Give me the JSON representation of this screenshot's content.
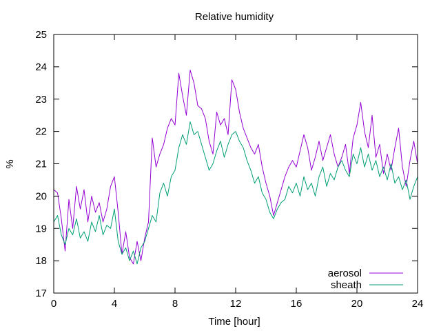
{
  "chart_data": {
    "type": "line",
    "title": "Relative humidity",
    "xlabel": "Time [hour]",
    "ylabel": "%",
    "xlim": [
      0,
      24
    ],
    "ylim": [
      17,
      25
    ],
    "x_ticks": [
      0,
      4,
      8,
      12,
      16,
      20,
      24
    ],
    "y_ticks": [
      17,
      18,
      19,
      20,
      21,
      22,
      23,
      24,
      25
    ],
    "grid": false,
    "legend_position": "bottom-right",
    "series": [
      {
        "name": "aerosol",
        "color": "#9400d3",
        "points": [
          [
            0.0,
            20.2
          ],
          [
            0.25,
            20.1
          ],
          [
            0.5,
            19.3
          ],
          [
            0.75,
            18.3
          ],
          [
            1.0,
            19.9
          ],
          [
            1.25,
            19.0
          ],
          [
            1.5,
            20.3
          ],
          [
            1.75,
            19.6
          ],
          [
            2.0,
            20.2
          ],
          [
            2.25,
            19.2
          ],
          [
            2.5,
            20.0
          ],
          [
            2.75,
            19.5
          ],
          [
            3.0,
            19.8
          ],
          [
            3.25,
            19.2
          ],
          [
            3.5,
            19.6
          ],
          [
            3.75,
            20.3
          ],
          [
            4.0,
            20.6
          ],
          [
            4.25,
            19.5
          ],
          [
            4.5,
            18.2
          ],
          [
            4.75,
            18.9
          ],
          [
            5.0,
            18.1
          ],
          [
            5.25,
            17.9
          ],
          [
            5.5,
            18.6
          ],
          [
            5.75,
            18.0
          ],
          [
            6.0,
            18.7
          ],
          [
            6.25,
            19.2
          ],
          [
            6.5,
            21.8
          ],
          [
            6.75,
            20.9
          ],
          [
            7.0,
            21.3
          ],
          [
            7.25,
            21.6
          ],
          [
            7.5,
            22.1
          ],
          [
            7.75,
            22.4
          ],
          [
            8.0,
            22.2
          ],
          [
            8.25,
            23.8
          ],
          [
            8.5,
            23.1
          ],
          [
            8.75,
            22.5
          ],
          [
            9.0,
            23.9
          ],
          [
            9.25,
            23.5
          ],
          [
            9.5,
            22.8
          ],
          [
            9.75,
            22.7
          ],
          [
            10.0,
            22.4
          ],
          [
            10.25,
            21.7
          ],
          [
            10.5,
            21.3
          ],
          [
            10.75,
            22.6
          ],
          [
            11.0,
            22.2
          ],
          [
            11.25,
            22.4
          ],
          [
            11.5,
            21.9
          ],
          [
            11.75,
            23.6
          ],
          [
            12.0,
            23.3
          ],
          [
            12.25,
            22.6
          ],
          [
            12.5,
            22.1
          ],
          [
            12.75,
            21.8
          ],
          [
            13.0,
            21.5
          ],
          [
            13.25,
            21.3
          ],
          [
            13.5,
            21.6
          ],
          [
            13.75,
            20.9
          ],
          [
            14.0,
            20.4
          ],
          [
            14.25,
            20.0
          ],
          [
            14.5,
            19.4
          ],
          [
            14.75,
            19.8
          ],
          [
            15.0,
            20.2
          ],
          [
            15.25,
            20.6
          ],
          [
            15.5,
            20.9
          ],
          [
            15.75,
            21.1
          ],
          [
            16.0,
            20.9
          ],
          [
            16.25,
            21.4
          ],
          [
            16.5,
            21.9
          ],
          [
            16.75,
            21.5
          ],
          [
            17.0,
            20.8
          ],
          [
            17.25,
            21.2
          ],
          [
            17.5,
            21.7
          ],
          [
            17.75,
            21.1
          ],
          [
            18.0,
            21.5
          ],
          [
            18.25,
            21.9
          ],
          [
            18.5,
            21.3
          ],
          [
            18.75,
            20.9
          ],
          [
            19.0,
            21.2
          ],
          [
            19.25,
            21.6
          ],
          [
            19.5,
            20.7
          ],
          [
            19.75,
            21.8
          ],
          [
            20.0,
            22.2
          ],
          [
            20.25,
            22.9
          ],
          [
            20.5,
            22.0
          ],
          [
            20.75,
            21.5
          ],
          [
            21.0,
            22.5
          ],
          [
            21.25,
            21.2
          ],
          [
            21.5,
            21.6
          ],
          [
            21.75,
            20.7
          ],
          [
            22.0,
            21.3
          ],
          [
            22.25,
            20.8
          ],
          [
            22.5,
            21.5
          ],
          [
            22.75,
            22.1
          ],
          [
            23.0,
            20.9
          ],
          [
            23.25,
            20.3
          ],
          [
            23.5,
            21.1
          ],
          [
            23.75,
            21.7
          ],
          [
            24.0,
            21.0
          ]
        ]
      },
      {
        "name": "sheath",
        "color": "#009e73",
        "points": [
          [
            0.0,
            19.2
          ],
          [
            0.25,
            19.4
          ],
          [
            0.5,
            18.8
          ],
          [
            0.75,
            18.5
          ],
          [
            1.0,
            19.0
          ],
          [
            1.25,
            18.8
          ],
          [
            1.5,
            19.3
          ],
          [
            1.75,
            18.7
          ],
          [
            2.0,
            18.9
          ],
          [
            2.25,
            18.6
          ],
          [
            2.5,
            19.2
          ],
          [
            2.75,
            18.9
          ],
          [
            3.0,
            19.4
          ],
          [
            3.25,
            18.8
          ],
          [
            3.5,
            19.1
          ],
          [
            3.75,
            19.0
          ],
          [
            4.0,
            19.6
          ],
          [
            4.25,
            18.6
          ],
          [
            4.5,
            18.2
          ],
          [
            4.75,
            18.4
          ],
          [
            5.0,
            18.0
          ],
          [
            5.25,
            18.3
          ],
          [
            5.5,
            17.9
          ],
          [
            5.75,
            18.4
          ],
          [
            6.0,
            18.6
          ],
          [
            6.25,
            19.0
          ],
          [
            6.5,
            19.4
          ],
          [
            6.75,
            19.2
          ],
          [
            7.0,
            20.1
          ],
          [
            7.25,
            20.4
          ],
          [
            7.5,
            20.0
          ],
          [
            7.75,
            20.6
          ],
          [
            8.0,
            20.8
          ],
          [
            8.25,
            21.5
          ],
          [
            8.5,
            21.9
          ],
          [
            8.75,
            21.6
          ],
          [
            9.0,
            22.3
          ],
          [
            9.25,
            21.9
          ],
          [
            9.5,
            22.0
          ],
          [
            9.75,
            21.6
          ],
          [
            10.0,
            21.2
          ],
          [
            10.25,
            20.8
          ],
          [
            10.5,
            21.0
          ],
          [
            10.75,
            21.4
          ],
          [
            11.0,
            21.7
          ],
          [
            11.25,
            21.2
          ],
          [
            11.5,
            21.6
          ],
          [
            11.75,
            21.9
          ],
          [
            12.0,
            22.0
          ],
          [
            12.25,
            21.7
          ],
          [
            12.5,
            21.5
          ],
          [
            12.75,
            21.1
          ],
          [
            13.0,
            20.8
          ],
          [
            13.25,
            20.4
          ],
          [
            13.5,
            20.6
          ],
          [
            13.75,
            20.1
          ],
          [
            14.0,
            19.9
          ],
          [
            14.25,
            19.5
          ],
          [
            14.5,
            19.3
          ],
          [
            14.75,
            19.6
          ],
          [
            15.0,
            19.8
          ],
          [
            15.25,
            19.9
          ],
          [
            15.5,
            20.3
          ],
          [
            15.75,
            20.1
          ],
          [
            16.0,
            20.4
          ],
          [
            16.25,
            20.0
          ],
          [
            16.5,
            20.6
          ],
          [
            16.75,
            20.2
          ],
          [
            17.0,
            20.4
          ],
          [
            17.25,
            20.0
          ],
          [
            17.5,
            20.6
          ],
          [
            17.75,
            20.9
          ],
          [
            18.0,
            20.3
          ],
          [
            18.25,
            20.7
          ],
          [
            18.5,
            20.5
          ],
          [
            18.75,
            20.9
          ],
          [
            19.0,
            21.1
          ],
          [
            19.25,
            20.8
          ],
          [
            19.5,
            20.6
          ],
          [
            19.75,
            21.3
          ],
          [
            20.0,
            21.0
          ],
          [
            20.25,
            21.5
          ],
          [
            20.5,
            20.9
          ],
          [
            20.75,
            21.3
          ],
          [
            21.0,
            20.8
          ],
          [
            21.25,
            21.1
          ],
          [
            21.5,
            20.6
          ],
          [
            21.75,
            20.9
          ],
          [
            22.0,
            20.5
          ],
          [
            22.25,
            21.0
          ],
          [
            22.5,
            20.4
          ],
          [
            22.75,
            20.6
          ],
          [
            23.0,
            20.2
          ],
          [
            23.25,
            20.5
          ],
          [
            23.5,
            19.9
          ],
          [
            23.75,
            20.3
          ],
          [
            24.0,
            20.6
          ]
        ]
      }
    ]
  }
}
